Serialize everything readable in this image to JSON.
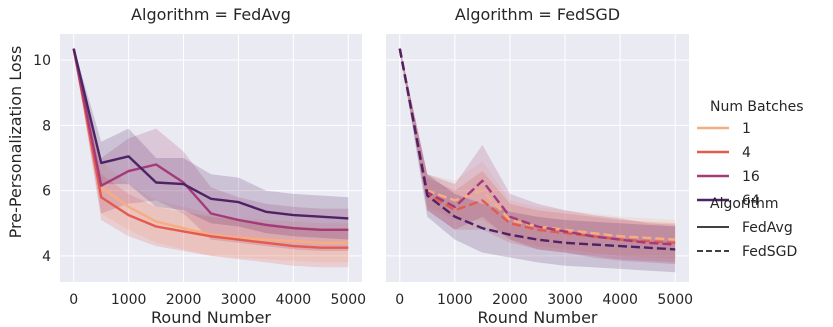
{
  "ylabel": "Pre-Personalization Loss",
  "legend": {
    "hue_title": "Num Batches",
    "hue_entries": [
      "1",
      "4",
      "16",
      "64"
    ],
    "style_title": "Algorithm",
    "style_entries": [
      "FedAvg",
      "FedSGD"
    ]
  },
  "colors": {
    "1": "#f6ad80",
    "4": "#e55a4e",
    "16": "#a53a78",
    "64": "#4e2366",
    "panel_bg": "#eaeaf2",
    "grid": "#ffffff"
  },
  "chart_data": [
    {
      "type": "line",
      "title": "Algorithm = FedAvg",
      "xlabel": "Round Number",
      "ylabel": "Pre-Personalization Loss",
      "linestyle": "solid",
      "xlim": [
        -250,
        5250
      ],
      "ylim": [
        3.2,
        10.8
      ],
      "xticks": [
        0,
        1000,
        2000,
        3000,
        4000,
        5000
      ],
      "yticks": [
        4,
        6,
        8,
        10
      ],
      "grid": true,
      "legend": "outside-right",
      "x": [
        0,
        500,
        1000,
        1500,
        2000,
        2500,
        3000,
        3500,
        4000,
        4500,
        5000
      ],
      "series": [
        {
          "name": "1",
          "values": [
            10.35,
            6.1,
            5.5,
            5.05,
            4.85,
            4.65,
            4.55,
            4.5,
            4.45,
            4.4,
            4.4
          ],
          "lower": [
            10.3,
            5.3,
            4.8,
            4.4,
            4.2,
            4.0,
            3.95,
            3.9,
            3.85,
            3.8,
            3.8
          ],
          "upper": [
            10.4,
            6.9,
            6.2,
            5.7,
            5.5,
            5.3,
            5.15,
            5.1,
            5.05,
            5.0,
            5.0
          ]
        },
        {
          "name": "4",
          "values": [
            10.35,
            5.8,
            5.25,
            4.9,
            4.75,
            4.6,
            4.5,
            4.4,
            4.3,
            4.25,
            4.25
          ],
          "lower": [
            10.3,
            5.1,
            4.6,
            4.3,
            4.15,
            4.0,
            3.9,
            3.8,
            3.7,
            3.65,
            3.65
          ],
          "upper": [
            10.4,
            6.5,
            5.9,
            5.5,
            5.35,
            5.2,
            5.1,
            5.0,
            4.9,
            4.85,
            4.85
          ]
        },
        {
          "name": "16",
          "values": [
            10.35,
            6.15,
            6.6,
            6.8,
            6.25,
            5.3,
            5.1,
            4.95,
            4.85,
            4.8,
            4.8
          ],
          "lower": [
            10.3,
            5.3,
            5.6,
            5.7,
            5.3,
            4.5,
            4.4,
            4.3,
            4.2,
            4.15,
            4.15
          ],
          "upper": [
            10.4,
            7.0,
            7.6,
            7.9,
            7.2,
            6.1,
            5.8,
            5.6,
            5.5,
            5.45,
            5.45
          ]
        },
        {
          "name": "64",
          "values": [
            10.35,
            6.85,
            7.05,
            6.25,
            6.2,
            5.75,
            5.65,
            5.35,
            5.25,
            5.2,
            5.15
          ],
          "lower": [
            10.3,
            6.2,
            6.2,
            5.5,
            5.4,
            5.0,
            4.9,
            4.7,
            4.6,
            4.55,
            4.5
          ],
          "upper": [
            10.4,
            7.5,
            7.9,
            7.0,
            7.0,
            6.5,
            6.4,
            6.0,
            5.9,
            5.85,
            5.8
          ]
        }
      ]
    },
    {
      "type": "line",
      "title": "Algorithm = FedSGD",
      "xlabel": "Round Number",
      "linestyle": "dashed",
      "xlim": [
        -250,
        5250
      ],
      "ylim": [
        3.2,
        10.8
      ],
      "xticks": [
        0,
        1000,
        2000,
        3000,
        4000,
        5000
      ],
      "yticks": [
        4,
        6,
        8,
        10
      ],
      "grid": true,
      "x": [
        0,
        500,
        1000,
        1500,
        2000,
        2500,
        3000,
        3500,
        4000,
        4500,
        5000
      ],
      "series": [
        {
          "name": "1",
          "values": [
            10.35,
            6.0,
            5.7,
            6.0,
            5.1,
            4.9,
            4.8,
            4.7,
            4.6,
            4.55,
            4.5
          ],
          "lower": [
            10.3,
            5.5,
            5.1,
            5.1,
            4.5,
            4.3,
            4.2,
            4.1,
            4.0,
            3.95,
            3.9
          ],
          "upper": [
            10.4,
            6.5,
            6.3,
            6.9,
            5.7,
            5.5,
            5.4,
            5.3,
            5.2,
            5.15,
            5.1
          ]
        },
        {
          "name": "4",
          "values": [
            10.35,
            5.9,
            5.4,
            5.7,
            5.0,
            4.8,
            4.7,
            4.6,
            4.5,
            4.45,
            4.4
          ],
          "lower": [
            10.3,
            5.4,
            4.8,
            4.8,
            4.4,
            4.2,
            4.1,
            4.0,
            3.9,
            3.85,
            3.8
          ],
          "upper": [
            10.4,
            6.4,
            6.0,
            6.6,
            5.6,
            5.4,
            5.3,
            5.2,
            5.1,
            5.05,
            5.0
          ]
        },
        {
          "name": "16",
          "values": [
            10.35,
            5.95,
            5.5,
            6.3,
            5.2,
            4.9,
            4.75,
            4.6,
            4.5,
            4.4,
            4.35
          ],
          "lower": [
            10.3,
            5.4,
            4.8,
            5.2,
            4.5,
            4.2,
            4.1,
            3.95,
            3.85,
            3.8,
            3.75
          ],
          "upper": [
            10.4,
            6.5,
            6.2,
            7.4,
            5.9,
            5.6,
            5.4,
            5.25,
            5.15,
            5.0,
            4.95
          ]
        },
        {
          "name": "64",
          "values": [
            10.35,
            5.85,
            5.2,
            4.85,
            4.65,
            4.5,
            4.4,
            4.35,
            4.3,
            4.25,
            4.2
          ],
          "lower": [
            10.3,
            5.2,
            4.5,
            4.1,
            3.95,
            3.8,
            3.7,
            3.65,
            3.6,
            3.55,
            3.5
          ],
          "upper": [
            10.4,
            6.5,
            5.9,
            5.6,
            5.35,
            5.2,
            5.1,
            5.05,
            5.0,
            4.95,
            4.9
          ]
        }
      ]
    }
  ]
}
